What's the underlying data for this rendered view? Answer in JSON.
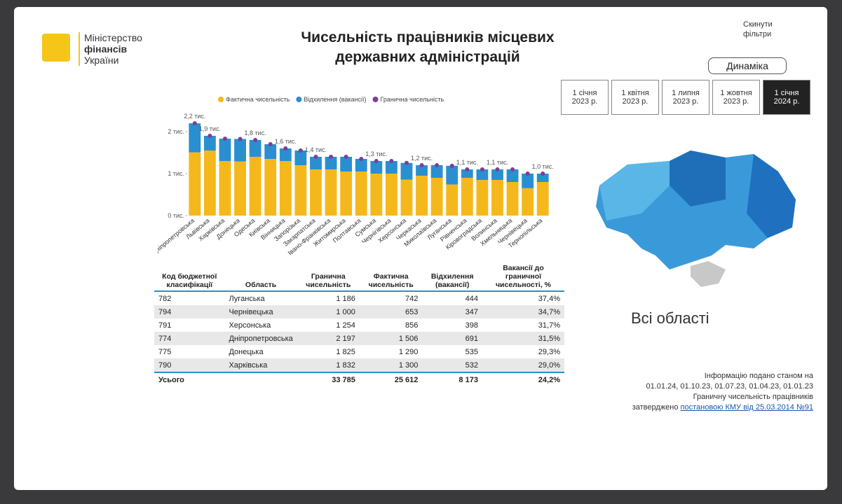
{
  "header": {
    "logo": [
      "Міністерство",
      "фінансів",
      "України"
    ],
    "title": "Чисельність працівників місцевих державних адміністрацій",
    "reset": "Скинути фільтри",
    "dynamics": "Динаміка"
  },
  "dates": [
    "1 січня 2023 р.",
    "1 квітня 2023 р.",
    "1 липня 2023 р.",
    "1 жовтня 2023 р.",
    "1 січня 2024 р."
  ],
  "chart_data": {
    "type": "bar",
    "categories": [
      "Дніпропетровська",
      "Львівська",
      "Харківська",
      "Донецька",
      "Одеська",
      "Київська",
      "Вінницька",
      "Запорізька",
      "Закарпатська",
      "Івано-Франківська",
      "Житомирська",
      "Полтавська",
      "Сумська",
      "Чернігівська",
      "Херсонська",
      "Черкаська",
      "Миколаївська",
      "Луганська",
      "Рівненська",
      "Кіровоградська",
      "Волинська",
      "Хмельницька",
      "Чернівецька",
      "Тернопільська"
    ],
    "series": [
      {
        "name": "Фактична чисельність",
        "color": "#f5b81c",
        "values": [
          1.506,
          1.55,
          1.3,
          1.29,
          1.4,
          1.35,
          1.3,
          1.2,
          1.1,
          1.1,
          1.05,
          1.05,
          1.0,
          1.0,
          0.856,
          0.95,
          0.9,
          0.742,
          0.9,
          0.85,
          0.85,
          0.8,
          0.653,
          0.8
        ]
      },
      {
        "name": "Відхилення (вакансії)",
        "color": "#2a8fd0",
        "values": [
          0.691,
          0.35,
          0.532,
          0.535,
          0.4,
          0.35,
          0.3,
          0.35,
          0.3,
          0.3,
          0.35,
          0.3,
          0.3,
          0.3,
          0.398,
          0.25,
          0.3,
          0.444,
          0.2,
          0.25,
          0.25,
          0.3,
          0.347,
          0.2
        ]
      },
      {
        "name": "Гранична чисельність",
        "color": "#7b3f98",
        "values": [
          2.197,
          1.9,
          1.832,
          1.825,
          1.8,
          1.7,
          1.6,
          1.55,
          1.4,
          1.4,
          1.4,
          1.35,
          1.3,
          1.3,
          1.254,
          1.2,
          1.2,
          1.186,
          1.1,
          1.1,
          1.1,
          1.1,
          1.0,
          1.0
        ],
        "value_labels": [
          "2,2 тис.",
          "1,9 тис.",
          null,
          null,
          "1,8 тис.",
          null,
          "1,6 тис.",
          null,
          "1,4 тис.",
          null,
          null,
          null,
          "1,3 тис.",
          null,
          null,
          "1,2 тис.",
          null,
          null,
          "1,1 тис.",
          null,
          "1,1 тис.",
          null,
          null,
          "1,0 тис."
        ]
      }
    ],
    "ylim": [
      0,
      2.4
    ],
    "yticks": [
      {
        "value": 0,
        "label": "0 тис."
      },
      {
        "value": 1,
        "label": "1 тис."
      },
      {
        "value": 2,
        "label": "2 тис."
      }
    ]
  },
  "table": {
    "header": [
      "Код бюджетної класифікації",
      "Область",
      "Гранична чисельність",
      "Фактична чисельність",
      "Відхилення (вакансії)",
      "Вакансії до граничної чисельності, %"
    ],
    "rows": [
      [
        "782",
        "Луганська",
        "1 186",
        "742",
        "444",
        "37,4%"
      ],
      [
        "794",
        "Чернівецька",
        "1 000",
        "653",
        "347",
        "34,7%"
      ],
      [
        "791",
        "Херсонська",
        "1 254",
        "856",
        "398",
        "31,7%"
      ],
      [
        "774",
        "Дніпропетровська",
        "2 197",
        "1 506",
        "691",
        "31,5%"
      ],
      [
        "775",
        "Донецька",
        "1 825",
        "1 290",
        "535",
        "29,3%"
      ],
      [
        "790",
        "Харківська",
        "1 832",
        "1 300",
        "532",
        "29,0%"
      ]
    ],
    "total": [
      "Усього",
      "33 785",
      "25 612",
      "8 173",
      "24,2%"
    ]
  },
  "map": {
    "label": "Всі області"
  },
  "footer": {
    "info": "Інформацію подано станом на",
    "dates": "01.01.24, 01.10.23, 01.07.23, 01.04.23, 01.01.23",
    "limit": "Граничну чисельність працівників",
    "approved": "затверджено",
    "link": "постановою КМУ від 25.03.2014 №91"
  }
}
